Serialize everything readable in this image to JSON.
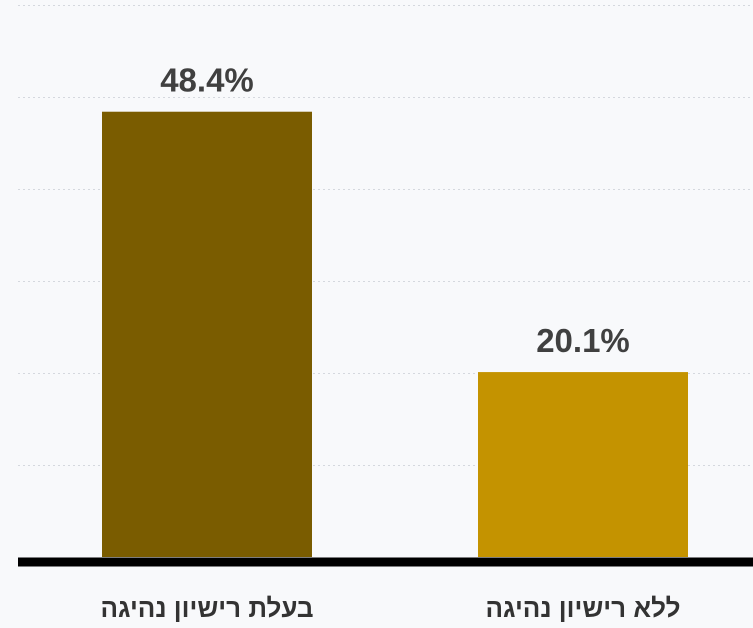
{
  "chart_data": {
    "type": "bar",
    "categories": [
      "בעלת רישיון נהיגה",
      "ללא רישיון נהיגה"
    ],
    "values": [
      48.4,
      20.1
    ],
    "value_labels": [
      "48.4%",
      "20.1%"
    ],
    "colors": [
      "#7a5c00",
      "#c49300"
    ],
    "ylim": [
      0,
      60
    ],
    "grid": true,
    "title": "",
    "xlabel": "",
    "ylabel": ""
  }
}
